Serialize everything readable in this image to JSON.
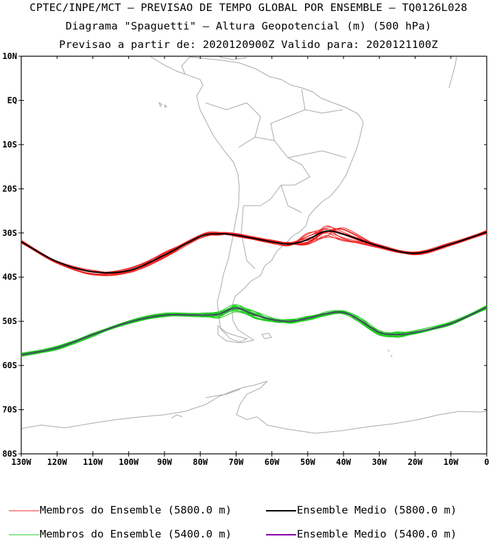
{
  "titles": {
    "line1": "CPTEC/INPE/MCT — PREVISAO DE TEMPO GLOBAL POR ENSEMBLE — TQ0126L028",
    "line2": "Diagrama \"Spaguetti\" — Altura Geopotencial (m) (500 hPa)",
    "line3": "Previsao a partir de: 2020120900Z  Valido para: 2020121100Z"
  },
  "axes": {
    "lat_labels": [
      "10N",
      "EQ",
      "10S",
      "20S",
      "30S",
      "40S",
      "50S",
      "60S",
      "70S",
      "80S"
    ],
    "lat_values": [
      10,
      0,
      -10,
      -20,
      -30,
      -40,
      -50,
      -60,
      -70,
      -80
    ],
    "lon_labels": [
      "130W",
      "120W",
      "110W",
      "100W",
      "90W",
      "80W",
      "70W",
      "60W",
      "50W",
      "40W",
      "30W",
      "20W",
      "10W",
      "0"
    ],
    "lon_values": [
      -130,
      -120,
      -110,
      -100,
      -90,
      -80,
      -70,
      -60,
      -50,
      -40,
      -30,
      -20,
      -10,
      0
    ]
  },
  "colors": {
    "red_members": "#ee2222",
    "green_members": "#22cc22",
    "mean_5800": "#000000",
    "mean_5400": "#8800aa",
    "coast": "#a8a8a8"
  },
  "chart_data": {
    "type": "line",
    "series": [
      {
        "name": "Ensemble Medio (5800.0 m)",
        "lon": [
          -130,
          -120,
          -110,
          -100,
          -90,
          -80,
          -75,
          -70,
          -60,
          -55,
          -50,
          -45,
          -40,
          -30,
          -20,
          -10,
          0
        ],
        "lat": [
          -32,
          -36.5,
          -38.8,
          -38.5,
          -35,
          -30.8,
          -30.2,
          -30.5,
          -32,
          -32.5,
          -31.5,
          -29.6,
          -30.3,
          -33,
          -34.6,
          -32.5,
          -29.8
        ]
      },
      {
        "name": "Ensemble Medio (5400.0 m)",
        "lon": [
          -130,
          -120,
          -110,
          -100,
          -90,
          -80,
          -75,
          -70,
          -65,
          -60,
          -55,
          -50,
          -45,
          -40,
          -35,
          -30,
          -25,
          -20,
          -10,
          0
        ],
        "lat": [
          -57.6,
          -56,
          -53,
          -50.2,
          -48.6,
          -48.6,
          -48.4,
          -47,
          -48.5,
          -49.6,
          -50,
          -49.3,
          -48.3,
          -48,
          -50,
          -52.5,
          -53,
          -52.5,
          -50.5,
          -46.8
        ]
      }
    ],
    "members_5800_count": 15,
    "members_5400_count": 15
  },
  "legend": {
    "red_members": "Membros do Ensemble (5800.0 m)",
    "mean_5800": "Ensemble Medio (5800.0 m)",
    "green_members": "Membros do Ensemble (5400.0 m)",
    "mean_5400": "Ensemble Medio (5400.0 m)"
  }
}
